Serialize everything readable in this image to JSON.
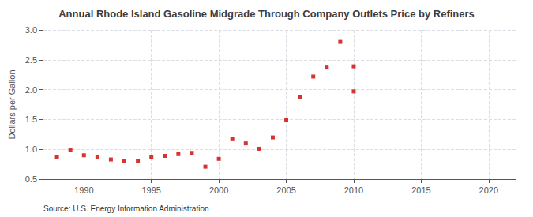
{
  "chart_data": {
    "type": "scatter",
    "title": "Annual Rhode Island Gasoline Midgrade Through Company Outlets Price by Refiners",
    "ylabel": "Dollars per Gallon",
    "annotation": "Source: U.S. Energy Information Administration",
    "color": "#cc0000",
    "marker": "square",
    "grid": true,
    "xlim": [
      1987,
      2022
    ],
    "ylim": [
      0.5,
      3.0
    ],
    "xticks": [
      1990,
      1995,
      2000,
      2005,
      2010,
      2015,
      2020
    ],
    "yticks": [
      0.5,
      {
        "value": 1.0,
        "label": "1.0"
      },
      1.5,
      {
        "value": 2.0,
        "label": "2.0"
      },
      2.5,
      {
        "value": 3.0,
        "label": "3.0"
      }
    ],
    "x": [
      1988,
      1989,
      1990,
      1991,
      1992,
      1993,
      1994,
      1995,
      1996,
      1997,
      1998,
      1999,
      2000,
      2001,
      2002,
      2003,
      2004,
      2005,
      2006,
      2007,
      2008,
      2009,
      2010,
      2010
    ],
    "values": [
      0.87,
      0.99,
      0.9,
      0.87,
      0.83,
      0.8,
      0.8,
      0.87,
      0.89,
      0.92,
      0.94,
      0.71,
      0.84,
      1.17,
      1.1,
      1.01,
      1.2,
      1.49,
      1.88,
      2.22,
      2.37,
      2.8,
      1.97,
      2.39
    ]
  }
}
